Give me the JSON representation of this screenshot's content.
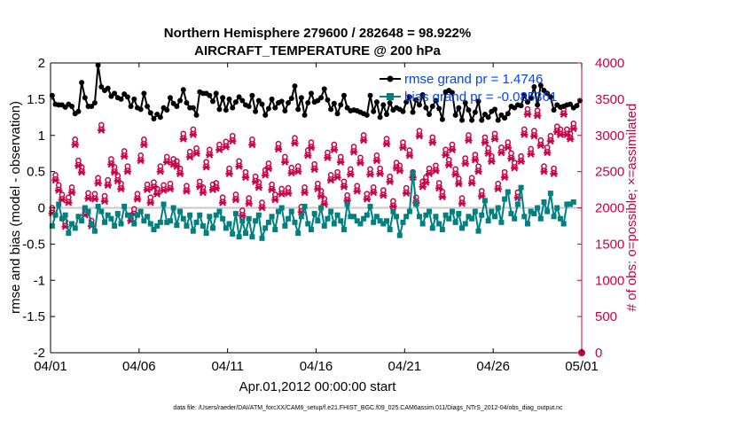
{
  "chart_data": {
    "type": "line",
    "title": "Northern Hemisphere 279600 / 282648 = 98.922%",
    "subtitle": "AIRCRAFT_TEMPERATURE @ 200 hPa",
    "xlabel": "Apr.01,2012 00:00:00 start",
    "ylabel": "rmse and bias (model - observation)",
    "ylabel_right": "# of obs: o=possible; ×=assimilated",
    "ylim": [
      -2,
      2
    ],
    "ylim_right": [
      0,
      4000
    ],
    "xlim": [
      0,
      30
    ],
    "x_tick_labels": [
      "04/01",
      "04/06",
      "04/11",
      "04/16",
      "04/21",
      "04/26",
      "05/01"
    ],
    "y_tick_labels": [
      "-2",
      "-1.5",
      "-1",
      "-0.5",
      "0",
      "0.5",
      "1",
      "1.5",
      "2"
    ],
    "y_right_tick_labels": [
      "0",
      "500",
      "1000",
      "1500",
      "2000",
      "2500",
      "3000",
      "3500",
      "4000"
    ],
    "legend": [
      "rmse grand pr = 1.4746",
      "bias grand pr = -0.085361"
    ],
    "footer": "data file: /Users/raeder/DAI/ATM_forcXX/CAM6_setup/f.e21.FHIST_BGC.f09_025.CAM6assim.011/Diags_NTrS_2012-04/obs_diag_output.nc",
    "colors": {
      "rmse": "#000000",
      "bias": "#008080",
      "obs": "#cc0044",
      "zero_line": "#c8c8c8",
      "legend_text": "#0044ff"
    },
    "series": [
      {
        "name": "rmse",
        "values": [
          1.55,
          1.43,
          1.42,
          1.42,
          1.39,
          1.43,
          1.4,
          1.3,
          1.33,
          1.73,
          1.52,
          1.4,
          1.4,
          1.45,
          1.97,
          1.67,
          1.62,
          1.65,
          1.54,
          1.58,
          1.52,
          1.5,
          1.57,
          1.53,
          1.4,
          1.5,
          1.38,
          1.36,
          1.58,
          1.4,
          1.31,
          1.23,
          1.29,
          1.25,
          1.38,
          1.35,
          1.52,
          1.44,
          1.4,
          1.48,
          1.63,
          1.45,
          1.38,
          1.38,
          1.28,
          1.6,
          1.58,
          1.58,
          1.55,
          1.47,
          1.58,
          1.36,
          1.52,
          1.35,
          1.5,
          1.38,
          1.46,
          1.53,
          1.48,
          1.42,
          1.4,
          1.55,
          1.33,
          1.48,
          1.43,
          1.28,
          1.37,
          1.5,
          1.38,
          1.45,
          1.47,
          1.34,
          1.45,
          1.51,
          1.68,
          1.36,
          1.52,
          1.28,
          1.45,
          1.58,
          1.46,
          1.48,
          1.52,
          1.64,
          1.49,
          1.36,
          1.44,
          1.3,
          1.42,
          1.55,
          1.38,
          1.34,
          1.35,
          1.34,
          1.32,
          1.3,
          1.28,
          1.55,
          1.33,
          1.46,
          1.25,
          1.42,
          1.29,
          1.45,
          1.35,
          1.38,
          1.36,
          1.33,
          1.46,
          1.53,
          1.32,
          1.49,
          1.42,
          1.56,
          1.38,
          1.29,
          1.4,
          1.48,
          1.37,
          1.22,
          1.6,
          1.62,
          1.59,
          1.28,
          1.38,
          1.21,
          1.45,
          1.35,
          1.21,
          1.32,
          1.47,
          1.21,
          1.29,
          1.25,
          1.33,
          1.36,
          1.21,
          1.28,
          1.24,
          1.3,
          1.4,
          1.38,
          1.42,
          1.41,
          1.55,
          1.46,
          1.52,
          1.67,
          1.42,
          1.69,
          1.62,
          1.58,
          1.53,
          1.35,
          1.42,
          1.39,
          1.4,
          1.42,
          1.43,
          1.38,
          1.41,
          1.48
        ]
      },
      {
        "name": "bias",
        "values": [
          -0.25,
          -0.1,
          0.05,
          -0.15,
          -0.1,
          -0.35,
          -0.22,
          -0.28,
          -0.12,
          -0.18,
          0.0,
          -0.05,
          -0.22,
          -0.32,
          0.02,
          -0.05,
          -0.2,
          -0.1,
          -0.15,
          -0.25,
          -0.08,
          -0.22,
          0.02,
          -0.1,
          -0.12,
          -0.22,
          -0.1,
          -0.05,
          -0.18,
          -0.12,
          -0.22,
          -0.3,
          -0.25,
          -0.2,
          0.05,
          -0.2,
          -0.18,
          0.0,
          -0.24,
          -0.05,
          -0.15,
          -0.25,
          -0.1,
          -0.32,
          -0.2,
          -0.1,
          -0.25,
          -0.35,
          -0.12,
          -0.28,
          -0.1,
          -0.05,
          -0.15,
          -0.28,
          -0.22,
          -0.36,
          -0.08,
          -0.4,
          -0.18,
          -0.35,
          -0.15,
          -0.4,
          -0.18,
          -0.1,
          -0.42,
          -0.28,
          -0.2,
          -0.12,
          -0.3,
          -0.05,
          0.0,
          -0.25,
          -0.15,
          -0.05,
          -0.2,
          -0.35,
          -0.12,
          0.02,
          -0.22,
          -0.3,
          -0.08,
          -0.18,
          0.0,
          -0.25,
          -0.15,
          -0.05,
          -0.22,
          -0.1,
          -0.18,
          -0.3,
          0.05,
          -0.12,
          -0.12,
          -0.18,
          -0.22,
          -0.15,
          -0.1,
          0.02,
          -0.2,
          -0.12,
          -0.18,
          -0.22,
          -0.18,
          -0.3,
          -0.05,
          -0.12,
          -0.38,
          -0.2,
          -0.12,
          -0.05,
          0.48,
          0.05,
          -0.12,
          -0.22,
          -0.1,
          -0.05,
          -0.28,
          -0.12,
          -0.22,
          -0.3,
          -0.1,
          -0.15,
          -0.05,
          -0.2,
          -0.08,
          -0.28,
          -0.22,
          -0.12,
          -0.15,
          -0.05,
          -0.32,
          -0.1,
          0.1,
          -0.18,
          -0.05,
          -0.12,
          0.0,
          -0.2,
          0.12,
          0.22,
          -0.08,
          -0.15,
          0.05,
          0.28,
          -0.12,
          -0.22,
          -0.05,
          -0.08,
          0.0,
          -0.15,
          0.08,
          -0.05,
          0.2,
          -0.12,
          0.0,
          -0.15,
          -0.22,
          0.05,
          0.05,
          0.08
        ]
      },
      {
        "name": "obs possible",
        "values": [
          1925,
          2380,
          2240,
          2110,
          1740,
          2070,
          2210,
          2870,
          2580,
          2490,
          1900,
          2130,
          1750,
          2120,
          2340,
          3070,
          2090,
          2310,
          2600,
          2490,
          2370,
          2260,
          2710,
          2500,
          1820,
          1910,
          2120,
          2650,
          2870,
          2250,
          2070,
          2280,
          2190,
          2500,
          2240,
          2630,
          2260,
          2600,
          2570,
          2470,
          2950,
          2230,
          2700,
          3010,
          2750,
          2290,
          2210,
          2560,
          2730,
          2250,
          2270,
          2800,
          2070,
          2840,
          2470,
          2920,
          2110,
          2570,
          1890,
          2420,
          2060,
          2870,
          2360,
          2280,
          2000,
          2450,
          2540,
          2250,
          2110,
          2810,
          2190,
          2630,
          2200,
          2480,
          2890,
          2500,
          1940,
          2210,
          2720,
          2830,
          2530,
          2260,
          2160,
          2050,
          2690,
          2380,
          2800,
          2420,
          2630,
          2290,
          2100,
          2460,
          2770,
          2230,
          2620,
          2930,
          2120,
          2460,
          2210,
          2650,
          2470,
          2170,
          2880,
          2360,
          2020,
          2550,
          2510,
          2830,
          2200,
          2720,
          2420,
          2070,
          2990,
          2290,
          2350,
          2470,
          2900,
          2510,
          2270,
          2150,
          2730,
          2590,
          2800,
          2460,
          2330,
          2060,
          2610,
          2930,
          2340,
          2660,
          2500,
          2160,
          2900,
          2750,
          2640,
          2950,
          2260,
          2760,
          2420,
          2830,
          2680,
          2550,
          2140,
          2640,
          3010,
          3290,
          2740,
          2990,
          3270,
          2860,
          2500,
          2760,
          2920,
          2470,
          3050,
          3010,
          3290,
          3010,
          2950,
          3090
        ]
      }
    ]
  }
}
